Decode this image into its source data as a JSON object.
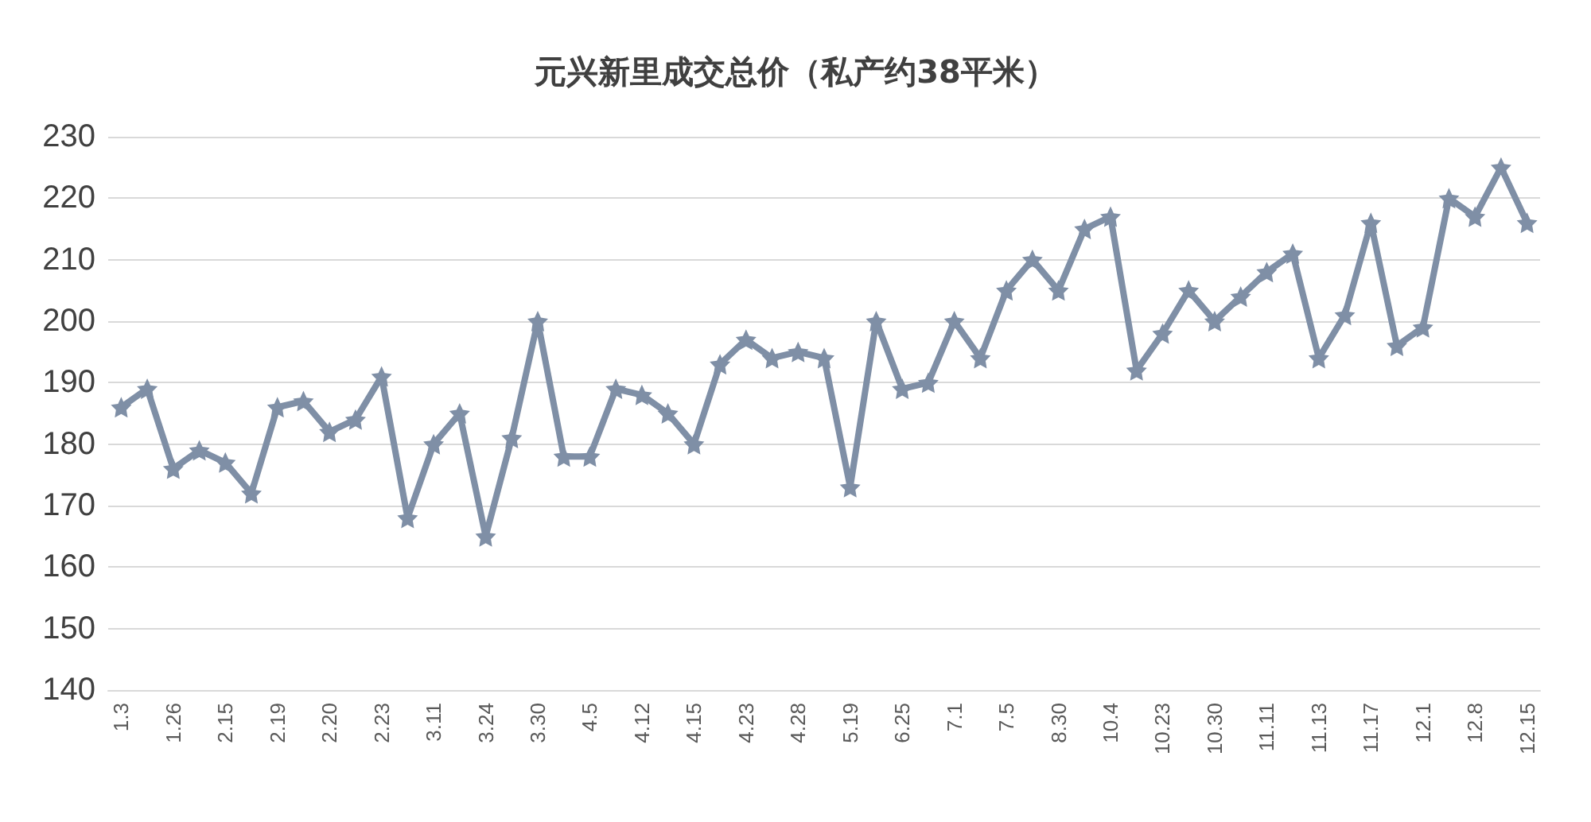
{
  "chart_data": {
    "type": "line",
    "title": "元兴新里成交总价（私产约38平米）",
    "categories": [
      "1.3",
      null,
      "1.26",
      null,
      "2.15",
      null,
      "2.19",
      null,
      "2.20",
      null,
      "2.23",
      null,
      "3.11",
      null,
      "3.24",
      null,
      "3.30",
      null,
      "4.5",
      null,
      "4.12",
      null,
      "4.15",
      null,
      "4.23",
      null,
      "4.28",
      null,
      "5.19",
      null,
      "6.25",
      null,
      "7.1",
      null,
      "7.5",
      null,
      "8.30",
      null,
      "10.4",
      null,
      "10.23",
      null,
      "10.30",
      null,
      "11.11",
      null,
      "11.13",
      null,
      "11.17",
      null,
      "12.1",
      null,
      "12.8",
      null,
      "12.15"
    ],
    "series": [
      {
        "color": "#7f8fa6",
        "values": [
          186,
          189,
          176,
          179,
          177,
          172,
          186,
          187,
          182,
          184,
          191,
          168,
          180,
          185,
          165,
          181,
          200,
          178,
          178,
          189,
          188,
          185,
          180,
          193,
          197,
          194,
          195,
          194,
          173,
          200,
          189,
          190,
          200,
          194,
          205,
          210,
          205,
          215,
          217,
          192,
          198,
          205,
          200,
          204,
          208,
          211,
          194,
          201,
          216,
          196,
          199,
          220,
          217,
          225,
          216
        ]
      }
    ],
    "ylim": [
      140,
      230
    ],
    "yticks": [
      140,
      150,
      160,
      170,
      180,
      190,
      200,
      210,
      220,
      230
    ],
    "grid": "y",
    "marker": "star",
    "line_style": "solid"
  }
}
